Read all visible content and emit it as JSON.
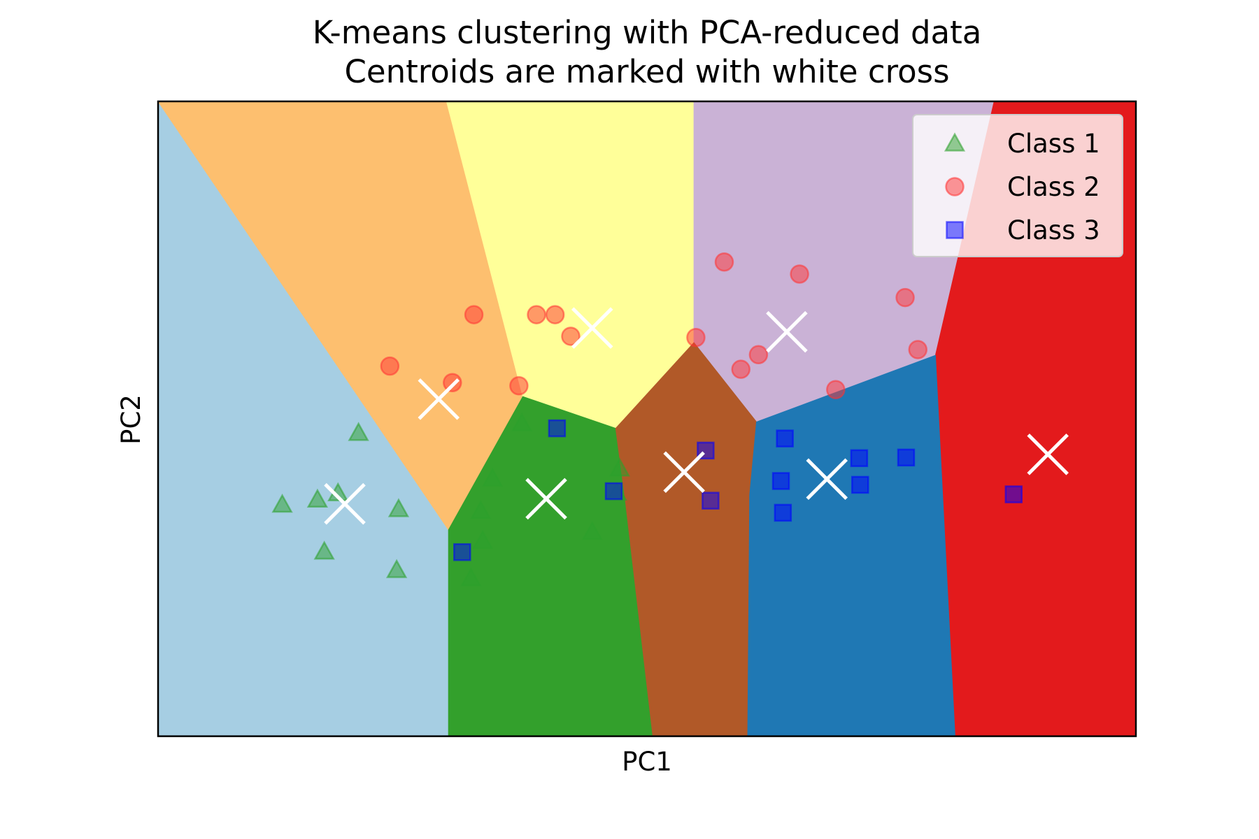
{
  "chart_data": {
    "type": "scatter",
    "title": "K-means clustering with PCA-reduced data",
    "subtitle": "Centroids are marked with white cross",
    "xlabel": "PC1",
    "ylabel": "PC2",
    "xlim": [
      0,
      100
    ],
    "ylim": [
      0,
      100
    ],
    "grid": false,
    "xticks": false,
    "yticks": false,
    "legend": {
      "position": "top-right",
      "entries": [
        {
          "label": "Class 1",
          "marker": "triangle",
          "color": "#2ca02c"
        },
        {
          "label": "Class 2",
          "marker": "circle",
          "color": "#ff3333"
        },
        {
          "label": "Class 3",
          "marker": "square",
          "color": "#0000ff"
        }
      ]
    },
    "regions": [
      {
        "color": "#a6cee3",
        "vertices": [
          [
            0,
            100
          ],
          [
            0,
            0
          ],
          [
            29.7,
            0
          ],
          [
            29.7,
            32.5
          ],
          [
            9.6,
            100
          ]
        ]
      },
      {
        "color": "#fdbf6f",
        "vertices": [
          [
            0,
            100
          ],
          [
            29.5,
            100
          ],
          [
            37.3,
            53.5
          ],
          [
            29.7,
            32.5
          ]
        ]
      },
      {
        "color": "#ffff99",
        "vertices": [
          [
            29.5,
            100
          ],
          [
            54.8,
            100
          ],
          [
            54.8,
            62
          ],
          [
            46.8,
            48.5
          ],
          [
            37.3,
            53.5
          ]
        ]
      },
      {
        "color": "#cab2d6",
        "vertices": [
          [
            54.8,
            100
          ],
          [
            85.5,
            100
          ],
          [
            79.5,
            60
          ],
          [
            61.2,
            49.5
          ],
          [
            54.8,
            62
          ]
        ]
      },
      {
        "color": "#e31a1c",
        "vertices": [
          [
            85.5,
            100
          ],
          [
            100,
            100
          ],
          [
            100,
            0
          ],
          [
            81.5,
            0
          ],
          [
            79.5,
            60
          ]
        ]
      },
      {
        "color": "#33a02c",
        "vertices": [
          [
            29.7,
            32.5
          ],
          [
            37.3,
            53.5
          ],
          [
            46.8,
            48.5
          ],
          [
            47.8,
            37
          ],
          [
            50.6,
            0
          ],
          [
            29.7,
            0
          ]
        ]
      },
      {
        "color": "#b15928",
        "vertices": [
          [
            46.8,
            48.5
          ],
          [
            54.8,
            62
          ],
          [
            61.2,
            49.5
          ],
          [
            60.5,
            38
          ],
          [
            60.3,
            0
          ],
          [
            50.6,
            0
          ],
          [
            47.8,
            37
          ]
        ]
      },
      {
        "color": "#1f78b4",
        "vertices": [
          [
            61.2,
            49.5
          ],
          [
            79.5,
            60
          ],
          [
            81.5,
            0
          ],
          [
            60.3,
            0
          ],
          [
            60.5,
            38
          ]
        ]
      }
    ],
    "series": [
      {
        "name": "Class 1",
        "marker": "triangle",
        "color": "#2ca02c",
        "points": [
          [
            20.5,
            47.8
          ],
          [
            12.7,
            36.5
          ],
          [
            16.3,
            37.3
          ],
          [
            18.4,
            38.3
          ],
          [
            24.6,
            35.8
          ],
          [
            17,
            29.1
          ],
          [
            24.4,
            26.2
          ],
          [
            32,
            24.9
          ],
          [
            34.2,
            40.6
          ],
          [
            33,
            35.5
          ],
          [
            33.2,
            30.8
          ],
          [
            37.2,
            49.3
          ],
          [
            44.4,
            32.2
          ],
          [
            47.2,
            42.2
          ],
          [
            46.9,
            38.4
          ]
        ]
      },
      {
        "name": "Class 2",
        "marker": "circle",
        "color": "#ff3333",
        "points": [
          [
            32.3,
            66.4
          ],
          [
            23.7,
            58.3
          ],
          [
            30.1,
            55.7
          ],
          [
            38.7,
            66.4
          ],
          [
            40.6,
            66.4
          ],
          [
            42.2,
            63
          ],
          [
            36.9,
            55.2
          ],
          [
            55,
            62.8
          ],
          [
            57.9,
            74.7
          ],
          [
            65.6,
            72.8
          ],
          [
            76.4,
            69.1
          ],
          [
            77.7,
            60.9
          ],
          [
            61.4,
            60.1
          ],
          [
            59.6,
            57.8
          ],
          [
            69.3,
            54.6
          ]
        ]
      },
      {
        "name": "Class 3",
        "marker": "square",
        "color": "#0000ff",
        "points": [
          [
            40.8,
            48.5
          ],
          [
            31.1,
            29
          ],
          [
            46.6,
            38.6
          ],
          [
            56,
            45
          ],
          [
            56.5,
            37.1
          ],
          [
            64.1,
            46.9
          ],
          [
            63.7,
            40.2
          ],
          [
            63.9,
            35.2
          ],
          [
            71.7,
            43.8
          ],
          [
            71.8,
            39.6
          ],
          [
            76.5,
            43.9
          ],
          [
            87.5,
            38.1
          ]
        ]
      }
    ],
    "centroids": [
      [
        19.1,
        36.6
      ],
      [
        28.7,
        53.1
      ],
      [
        44.4,
        64.3
      ],
      [
        39.7,
        37.4
      ],
      [
        53.8,
        41.6
      ],
      [
        64.3,
        63.7
      ],
      [
        68.4,
        40.5
      ],
      [
        91,
        44.4
      ]
    ]
  }
}
